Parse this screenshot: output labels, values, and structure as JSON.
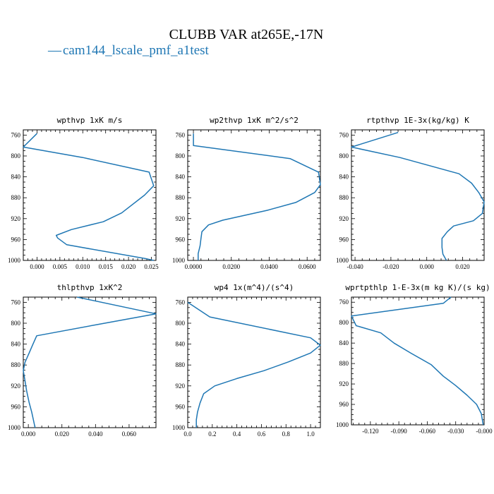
{
  "figure": {
    "title": "CLUBB VAR at265E,-17N",
    "legend_marker": "—",
    "legend_label": "cam144_lscale_pmf_a1test",
    "series_color": "#1f77b4"
  },
  "chart_data": [
    {
      "type": "line",
      "title": "wpthvp  1xK m/s",
      "xlim": [
        -0.003,
        0.026
      ],
      "ylim": [
        1000,
        750
      ],
      "x_ticks": [
        0.0,
        0.005,
        0.01,
        0.015,
        0.02,
        0.025
      ],
      "x_tick_labels": [
        "0.000",
        "0.005",
        "0.010",
        "0.015",
        "0.020",
        "0.025"
      ],
      "y_ticks": [
        760,
        800,
        840,
        880,
        920,
        960,
        1000
      ],
      "y_tick_labels": [
        "760",
        "800",
        "840",
        "880",
        "920",
        "960",
        "1000"
      ],
      "series": [
        {
          "x": [
            0.0,
            -0.003,
            0.01,
            0.0245,
            0.0255,
            0.0235,
            0.0185,
            0.0145,
            0.0075,
            0.0042,
            0.0045,
            0.0065,
            0.024,
            0.0255
          ],
          "y": [
            757,
            783,
            803,
            831,
            857,
            875,
            909,
            926,
            941,
            952,
            957,
            970,
            997,
            1000
          ]
        }
      ]
    },
    {
      "type": "line",
      "title": "wp2thvp  1xK m^2/s^2",
      "xlim": [
        -0.003,
        0.067
      ],
      "ylim": [
        1000,
        750
      ],
      "x_ticks": [
        0.0,
        0.02,
        0.04,
        0.06
      ],
      "x_tick_labels": [
        "0.0000",
        "0.0200",
        "0.0400",
        "0.0600"
      ],
      "y_ticks": [
        760,
        800,
        840,
        880,
        920,
        960,
        1000
      ],
      "y_tick_labels": [
        "760",
        "800",
        "840",
        "880",
        "920",
        "960",
        "1000"
      ],
      "series": [
        {
          "x": [
            0.0,
            0.0,
            0.051,
            0.066,
            0.067,
            0.064,
            0.054,
            0.039,
            0.0155,
            0.008,
            0.0045,
            0.004,
            0.0035,
            0.0025,
            0.0025
          ],
          "y": [
            757,
            780,
            805,
            831,
            855,
            870,
            889,
            904,
            923,
            932,
            945,
            958,
            972,
            987,
            1000
          ]
        }
      ]
    },
    {
      "type": "line",
      "title": "rtpthvp  1E-3x(kg/kg) K",
      "xlim": [
        -0.042,
        0.032
      ],
      "ylim": [
        1000,
        750
      ],
      "x_ticks": [
        -0.04,
        -0.02,
        0.0,
        0.02
      ],
      "x_tick_labels": [
        "-0.040",
        "-0.020",
        "0.000",
        "0.020"
      ],
      "y_ticks": [
        760,
        800,
        840,
        880,
        920,
        960,
        1000
      ],
      "y_tick_labels": [
        "760",
        "800",
        "840",
        "880",
        "920",
        "960",
        "1000"
      ],
      "series": [
        {
          "x": [
            -0.016,
            -0.042,
            -0.015,
            0.018,
            0.025,
            0.029,
            0.032,
            0.031,
            0.026,
            0.015,
            0.0115,
            0.0085,
            0.0085,
            0.009,
            0.011
          ],
          "y": [
            755,
            783,
            803,
            834,
            852,
            870,
            888,
            910,
            924,
            934,
            945,
            958,
            975,
            988,
            1000
          ]
        }
      ]
    },
    {
      "type": "line",
      "title": "thlpthvp  1xK^2",
      "xlim": [
        -0.003,
        0.076
      ],
      "ylim": [
        1000,
        750
      ],
      "x_ticks": [
        0.0,
        0.02,
        0.04,
        0.06
      ],
      "x_tick_labels": [
        "0.000",
        "0.020",
        "0.040",
        "0.060"
      ],
      "y_ticks": [
        760,
        800,
        840,
        880,
        920,
        960,
        1000
      ],
      "y_tick_labels": [
        "760",
        "800",
        "840",
        "880",
        "920",
        "960",
        "1000"
      ],
      "series": [
        {
          "x": [
            0.029,
            0.076,
            0.042,
            0.005,
            0.0025,
            0.0005,
            -0.002,
            -0.003,
            -0.002,
            -0.001,
            0.0005,
            0.002,
            0.003,
            0.004
          ],
          "y": [
            750,
            782,
            802,
            824,
            842,
            857,
            875,
            891,
            910,
            930,
            952,
            970,
            985,
            1000
          ]
        }
      ]
    },
    {
      "type": "line",
      "title": "wp4  1x(m^4)/(s^4)",
      "xlim": [
        0.0,
        1.08
      ],
      "ylim": [
        1000,
        750
      ],
      "x_ticks": [
        0.0,
        0.2,
        0.4,
        0.6,
        0.8,
        1.0
      ],
      "x_tick_labels": [
        "0.0",
        "0.2",
        "0.4",
        "0.6",
        "0.8",
        "1.0"
      ],
      "y_ticks": [
        760,
        800,
        840,
        880,
        920,
        960,
        1000
      ],
      "y_tick_labels": [
        "760",
        "800",
        "840",
        "880",
        "920",
        "960",
        "1000"
      ],
      "series": [
        {
          "x": [
            0.0,
            0.18,
            1.0,
            1.08,
            1.0,
            0.82,
            0.62,
            0.4,
            0.22,
            0.13,
            0.1,
            0.08,
            0.07,
            0.07
          ],
          "y": [
            760,
            788,
            828,
            842,
            857,
            874,
            891,
            906,
            920,
            935,
            953,
            970,
            985,
            1000
          ]
        }
      ]
    },
    {
      "type": "line",
      "title": "wprtpthlp  1-E-3x(m kg K)/(s kg)",
      "xlim": [
        -0.14,
        0.0
      ],
      "ylim": [
        1000,
        750
      ],
      "x_ticks": [
        -0.12,
        -0.09,
        -0.06,
        -0.03,
        0.0
      ],
      "x_tick_labels": [
        "-0.120",
        "-0.090",
        "-0.060",
        "-0.030",
        "-0.000"
      ],
      "y_ticks": [
        760,
        800,
        840,
        880,
        920,
        960,
        1000
      ],
      "y_tick_labels": [
        "760",
        "800",
        "840",
        "880",
        "920",
        "960",
        "1000"
      ],
      "series": [
        {
          "x": [
            -0.035,
            -0.043,
            -0.14,
            -0.135,
            -0.109,
            -0.095,
            -0.077,
            -0.056,
            -0.043,
            -0.03,
            -0.018,
            -0.008,
            -0.003,
            -0.001
          ],
          "y": [
            750,
            762,
            787,
            806,
            820,
            840,
            860,
            882,
            905,
            923,
            942,
            960,
            978,
            1000
          ]
        }
      ]
    }
  ]
}
